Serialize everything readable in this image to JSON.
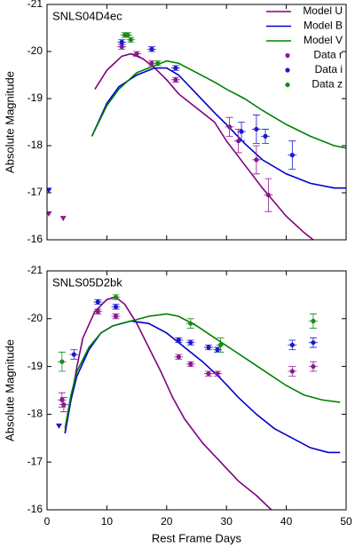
{
  "chart_data": [
    {
      "type": "line",
      "annotation": "SNLS04D4ec",
      "y_label": "Absolute Magnitude",
      "xlim": [
        0,
        50
      ],
      "ylim": [
        -16,
        -21
      ],
      "xticks": [
        0,
        10,
        20,
        30,
        40,
        50
      ],
      "yticks": [
        -21,
        -20,
        -19,
        -18,
        -17,
        -16
      ],
      "legend": "upper right",
      "series": [
        {
          "name": "Model U",
          "color": "#800080",
          "style": "line",
          "x": [
            8,
            10,
            12.5,
            14,
            16,
            18,
            20,
            22,
            25,
            28,
            30,
            33,
            36,
            40,
            43,
            44.5
          ],
          "values": [
            -19.2,
            -19.6,
            -19.9,
            -19.95,
            -19.85,
            -19.65,
            -19.4,
            -19.1,
            -18.8,
            -18.5,
            -18.1,
            -17.6,
            -17.1,
            -16.5,
            -16.15,
            -16
          ]
        },
        {
          "name": "Model B",
          "color": "#0000cd",
          "style": "line",
          "x": [
            7.5,
            10,
            12,
            15,
            18,
            20,
            22,
            25,
            28,
            30,
            33,
            36,
            40,
            44,
            48,
            50
          ],
          "values": [
            -18.2,
            -18.9,
            -19.25,
            -19.5,
            -19.65,
            -19.65,
            -19.5,
            -19.1,
            -18.7,
            -18.45,
            -18.05,
            -17.7,
            -17.4,
            -17.2,
            -17.1,
            -17.1
          ]
        },
        {
          "name": "Model V",
          "color": "#008000",
          "style": "line",
          "x": [
            7.5,
            10,
            12,
            15,
            18,
            20,
            22,
            25,
            28,
            30,
            33,
            36,
            40,
            44,
            48,
            50
          ],
          "values": [
            -18.2,
            -18.85,
            -19.2,
            -19.55,
            -19.7,
            -19.8,
            -19.75,
            -19.55,
            -19.35,
            -19.2,
            -19.0,
            -18.75,
            -18.45,
            -18.2,
            -18.0,
            -17.95
          ]
        },
        {
          "name": "Data r",
          "color": "#8b1a8b",
          "style": "points",
          "x": [
            12.5,
            15,
            17.5,
            21.5,
            30.5,
            32,
            35,
            37
          ],
          "values": [
            -20.1,
            -19.95,
            -19.75,
            -19.4,
            -18.4,
            -18.1,
            -17.7,
            -16.95
          ],
          "errors": [
            0.05,
            0.05,
            0.05,
            0.05,
            0.2,
            0.25,
            0.3,
            0.35
          ],
          "upper_limits": {
            "x": [
              0.3,
              2.7
            ],
            "values": [
              -16.55,
              -16.45
            ]
          }
        },
        {
          "name": "Data i",
          "color": "#1a1acd",
          "style": "points",
          "x": [
            12.5,
            17.5,
            21.5,
            32.5,
            35,
            36.5,
            41
          ],
          "values": [
            -20.2,
            -20.05,
            -19.65,
            -18.3,
            -18.35,
            -18.2,
            -17.8
          ],
          "errors": [
            0.05,
            0.05,
            0.05,
            0.2,
            0.3,
            0.15,
            0.3
          ],
          "upper_limits": {
            "x": [
              0.3
            ],
            "values": [
              -17.05
            ]
          }
        },
        {
          "name": "Data z",
          "color": "#1a8a1a",
          "style": "points",
          "x": [
            13,
            13.5,
            14,
            18.5
          ],
          "values": [
            -20.35,
            -20.35,
            -20.25,
            -19.75
          ],
          "errors": [
            0.05,
            0.05,
            0.05,
            0.05
          ]
        }
      ]
    },
    {
      "type": "line",
      "annotation": "SNLS05D2bk",
      "y_label": "Absolute Magnitude",
      "x_label": "Rest Frame Days",
      "xlim": [
        0,
        50
      ],
      "ylim": [
        -16,
        -21
      ],
      "xticks": [
        0,
        10,
        20,
        30,
        40,
        50
      ],
      "yticks": [
        -21,
        -20,
        -19,
        -18,
        -17,
        -16
      ],
      "series": [
        {
          "color": "#800080",
          "style": "line",
          "x": [
            3,
            4,
            5,
            6,
            8,
            10,
            11.5,
            13,
            15,
            17,
            19,
            21,
            23,
            26,
            29,
            32,
            35,
            37.5
          ],
          "values": [
            -17.6,
            -18.3,
            -19.0,
            -19.6,
            -20.15,
            -20.4,
            -20.45,
            -20.3,
            -19.9,
            -19.4,
            -18.9,
            -18.35,
            -17.9,
            -17.4,
            -17.0,
            -16.6,
            -16.3,
            -16
          ]
        },
        {
          "color": "#0000cd",
          "style": "line",
          "x": [
            3,
            4,
            5,
            7,
            9,
            11,
            14,
            17,
            20,
            23,
            26,
            29,
            32,
            35,
            38,
            41,
            44,
            47,
            49
          ],
          "values": [
            -17.6,
            -18.3,
            -18.8,
            -19.35,
            -19.7,
            -19.85,
            -19.95,
            -19.9,
            -19.7,
            -19.4,
            -19.1,
            -18.75,
            -18.35,
            -18.0,
            -17.7,
            -17.5,
            -17.3,
            -17.2,
            -17.2
          ]
        },
        {
          "color": "#008000",
          "style": "line",
          "x": [
            3,
            4,
            5,
            7,
            9,
            11,
            14,
            17,
            20,
            22,
            25,
            28,
            31,
            34,
            37,
            40,
            43,
            46,
            49
          ],
          "values": [
            -17.7,
            -18.4,
            -18.9,
            -19.4,
            -19.7,
            -19.85,
            -19.95,
            -20.05,
            -20.1,
            -20.05,
            -19.85,
            -19.6,
            -19.35,
            -19.1,
            -18.85,
            -18.6,
            -18.4,
            -18.3,
            -18.25
          ]
        },
        {
          "color": "#8b1a8b",
          "style": "points",
          "x": [
            2.5,
            2.8,
            8.5,
            11.5,
            22,
            24,
            27,
            28.5,
            41,
            44.5
          ],
          "values": [
            -18.3,
            -18.2,
            -20.15,
            -20.05,
            -19.2,
            -19.05,
            -18.85,
            -18.85,
            -18.9,
            -19.0
          ],
          "errors": [
            0.15,
            0.15,
            0.05,
            0.05,
            0.05,
            0.05,
            0.05,
            0.05,
            0.1,
            0.1
          ]
        },
        {
          "color": "#1a1acd",
          "style": "points",
          "x": [
            4.5,
            8.5,
            11.5,
            22,
            24,
            27,
            28.5,
            41,
            44.5
          ],
          "values": [
            -19.25,
            -20.35,
            -20.25,
            -19.55,
            -19.5,
            -19.4,
            -19.35,
            -19.45,
            -19.5
          ],
          "errors": [
            0.1,
            0.05,
            0.05,
            0.05,
            0.05,
            0.05,
            0.05,
            0.1,
            0.1
          ],
          "upper_limits": {
            "x": [
              2
            ],
            "values": [
              -17.75
            ]
          }
        },
        {
          "color": "#1a8a1a",
          "style": "points",
          "x": [
            2.5,
            11.5,
            24,
            29,
            44.5
          ],
          "values": [
            -19.1,
            -20.45,
            -19.9,
            -19.45,
            -19.95
          ],
          "errors": [
            0.2,
            0.05,
            0.1,
            0.15,
            0.15
          ]
        }
      ]
    }
  ]
}
